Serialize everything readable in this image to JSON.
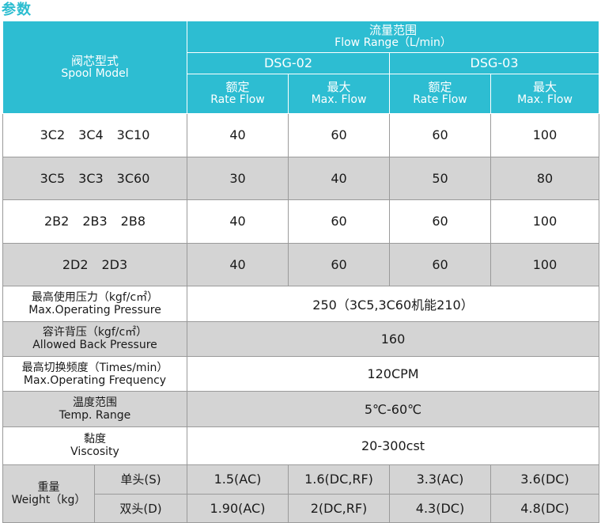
{
  "section_title": "参数",
  "header": {
    "spool_zh": "阀芯型式",
    "spool_en": "Spool Model",
    "flow_zh": "流量范围",
    "flow_en": "Flow Range（L/min）",
    "dsg02": "DSG-02",
    "dsg03": "DSG-03",
    "rate_zh": "额定",
    "rate_en": "Rate Flow",
    "max_zh": "最大",
    "max_en": "Max. Flow"
  },
  "rows": [
    {
      "models": [
        "3C2",
        "3C4",
        "3C10"
      ],
      "values": [
        "40",
        "60",
        "60",
        "100"
      ]
    },
    {
      "models": [
        "3C5",
        "3C3",
        "3C60"
      ],
      "values": [
        "30",
        "40",
        "50",
        "80"
      ]
    },
    {
      "models": [
        "2B2",
        "2B3",
        "2B8"
      ],
      "values": [
        "40",
        "60",
        "60",
        "100"
      ]
    },
    {
      "models": [
        "2D2",
        "2D3"
      ],
      "values": [
        "40",
        "60",
        "60",
        "100"
      ]
    }
  ],
  "specs": [
    {
      "zh": "最高使用压力（kgf/c㎡）",
      "en": "Max.Operating Pressure",
      "value": "250（3C5,3C60机能210）"
    },
    {
      "zh": "容许背压（kgf/c㎡）",
      "en": "Allowed Back Pressure",
      "value": "160"
    },
    {
      "zh": "最高切换频度（Times/min）",
      "en": "Max.Operating Frequency",
      "value": "120CPM"
    },
    {
      "zh": "温度范围",
      "en": "Temp. Range",
      "value": "5℃-60℃"
    },
    {
      "zh": "黏度",
      "en": "Viscosity",
      "value": "20-300cst"
    }
  ],
  "weight": {
    "zh": "重量",
    "en": "Weight（kg）",
    "single_label": "单头(S)",
    "double_label": "双头(D)",
    "single_values": [
      "1.5(AC)",
      "1.6(DC,RF)",
      "3.3(AC)",
      "3.6(DC)"
    ],
    "double_values": [
      "1.90(AC)",
      "2(DC,RF)",
      "4.3(DC)",
      "4.8(DC)"
    ]
  }
}
